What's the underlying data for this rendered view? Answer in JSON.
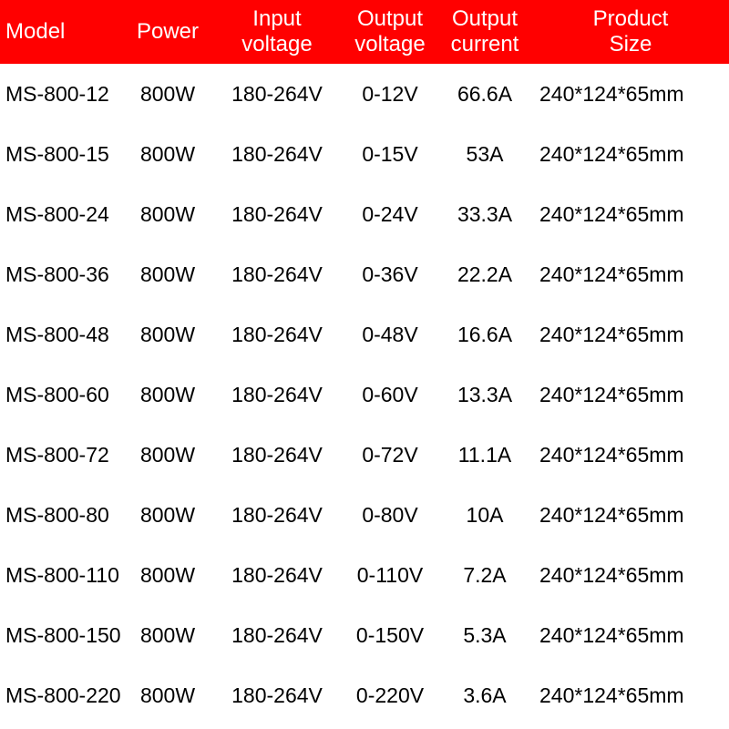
{
  "table": {
    "type": "table",
    "header_bg": "#ff0000",
    "header_text_color": "#ffffff",
    "body_text_color": "#000000",
    "background_color": "#ffffff",
    "header_fontsize": 24,
    "body_fontsize": 23,
    "columns": [
      {
        "key": "model",
        "label": "Model",
        "width_pct": 17,
        "align": "left"
      },
      {
        "key": "power",
        "label": "Power",
        "width_pct": 12,
        "align": "center"
      },
      {
        "key": "iv",
        "label": "Input\nvoltage",
        "width_pct": 18,
        "align": "center"
      },
      {
        "key": "ov",
        "label": "Output\nvoltage",
        "width_pct": 13,
        "align": "center"
      },
      {
        "key": "oc",
        "label": "Output\ncurrent",
        "width_pct": 13,
        "align": "center"
      },
      {
        "key": "size",
        "label": "Product\nSize",
        "width_pct": 27,
        "align": "left"
      }
    ],
    "rows": [
      {
        "model": "MS-800-12",
        "power": "800W",
        "iv": "180-264V",
        "ov": "0-12V",
        "oc": "66.6A",
        "size": "240*124*65mm"
      },
      {
        "model": "MS-800-15",
        "power": "800W",
        "iv": "180-264V",
        "ov": "0-15V",
        "oc": "53A",
        "size": "240*124*65mm"
      },
      {
        "model": "MS-800-24",
        "power": "800W",
        "iv": "180-264V",
        "ov": "0-24V",
        "oc": "33.3A",
        "size": "240*124*65mm"
      },
      {
        "model": "MS-800-36",
        "power": "800W",
        "iv": "180-264V",
        "ov": "0-36V",
        "oc": "22.2A",
        "size": "240*124*65mm"
      },
      {
        "model": "MS-800-48",
        "power": "800W",
        "iv": "180-264V",
        "ov": "0-48V",
        "oc": "16.6A",
        "size": "240*124*65mm"
      },
      {
        "model": "MS-800-60",
        "power": "800W",
        "iv": "180-264V",
        "ov": "0-60V",
        "oc": "13.3A",
        "size": "240*124*65mm"
      },
      {
        "model": "MS-800-72",
        "power": "800W",
        "iv": "180-264V",
        "ov": "0-72V",
        "oc": "11.1A",
        "size": "240*124*65mm"
      },
      {
        "model": "MS-800-80",
        "power": "800W",
        "iv": "180-264V",
        "ov": "0-80V",
        "oc": "10A",
        "size": "240*124*65mm"
      },
      {
        "model": "MS-800-110",
        "power": "800W",
        "iv": "180-264V",
        "ov": "0-110V",
        "oc": "7.2A",
        "size": "240*124*65mm"
      },
      {
        "model": "MS-800-150",
        "power": "800W",
        "iv": "180-264V",
        "ov": "0-150V",
        "oc": "5.3A",
        "size": "240*124*65mm"
      },
      {
        "model": "MS-800-220",
        "power": "800W",
        "iv": "180-264V",
        "ov": "0-220V",
        "oc": "3.6A",
        "size": "240*124*65mm"
      }
    ]
  }
}
